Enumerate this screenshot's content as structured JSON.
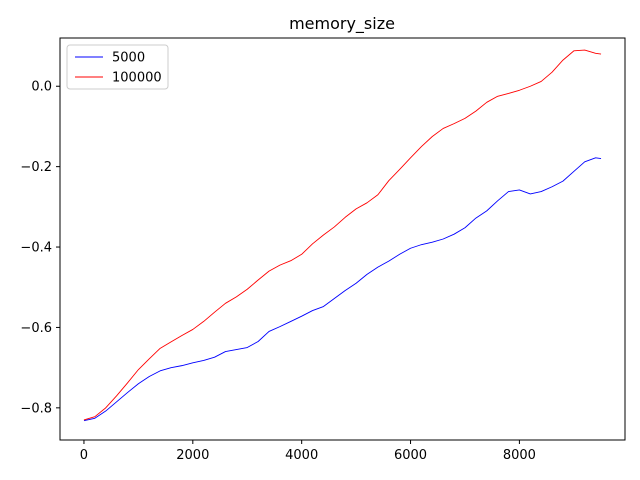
{
  "chart_data": {
    "type": "line",
    "title": "memory_size",
    "xlabel": "",
    "ylabel": "",
    "xlim": [
      -440,
      9940
    ],
    "ylim": [
      -0.88,
      0.12
    ],
    "xticks": [
      0,
      2000,
      4000,
      6000,
      8000
    ],
    "yticks": [
      -0.8,
      -0.6,
      -0.4,
      -0.2,
      0.0
    ],
    "xtick_labels": [
      "0",
      "2000",
      "4000",
      "6000",
      "8000"
    ],
    "ytick_labels": [
      "−0.8",
      "−0.6",
      "−0.4",
      "−0.2",
      "0.0"
    ],
    "grid": false,
    "legend_position": "top-left",
    "series": [
      {
        "name": "5000",
        "color": "#0000ff",
        "x": [
          0,
          200,
          400,
          600,
          800,
          1000,
          1200,
          1400,
          1600,
          1800,
          2000,
          2200,
          2400,
          2600,
          2800,
          3000,
          3200,
          3400,
          3600,
          3800,
          4000,
          4200,
          4400,
          4600,
          4800,
          5000,
          5200,
          5400,
          5600,
          5800,
          6000,
          6200,
          6400,
          6600,
          6800,
          7000,
          7200,
          7400,
          7600,
          7800,
          8000,
          8200,
          8400,
          8600,
          8800,
          9000,
          9200,
          9400,
          9500
        ],
        "y": [
          -0.832,
          -0.826,
          -0.808,
          -0.785,
          -0.762,
          -0.74,
          -0.722,
          -0.708,
          -0.7,
          -0.695,
          -0.688,
          -0.682,
          -0.674,
          -0.66,
          -0.655,
          -0.65,
          -0.635,
          -0.61,
          -0.598,
          -0.585,
          -0.572,
          -0.558,
          -0.548,
          -0.528,
          -0.508,
          -0.49,
          -0.468,
          -0.45,
          -0.435,
          -0.418,
          -0.403,
          -0.394,
          -0.388,
          -0.38,
          -0.368,
          -0.352,
          -0.328,
          -0.31,
          -0.285,
          -0.262,
          -0.258,
          -0.268,
          -0.262,
          -0.25,
          -0.236,
          -0.212,
          -0.188,
          -0.178,
          -0.18
        ]
      },
      {
        "name": "100000",
        "color": "#ff0000",
        "x": [
          0,
          200,
          400,
          600,
          800,
          1000,
          1200,
          1400,
          1600,
          1800,
          2000,
          2200,
          2400,
          2600,
          2800,
          3000,
          3200,
          3400,
          3600,
          3800,
          4000,
          4200,
          4400,
          4600,
          4800,
          5000,
          5200,
          5400,
          5600,
          5800,
          6000,
          6200,
          6400,
          6600,
          6800,
          7000,
          7200,
          7400,
          7600,
          7800,
          8000,
          8200,
          8400,
          8600,
          8800,
          9000,
          9200,
          9400,
          9500
        ],
        "y": [
          -0.83,
          -0.822,
          -0.8,
          -0.77,
          -0.738,
          -0.705,
          -0.678,
          -0.652,
          -0.636,
          -0.62,
          -0.605,
          -0.585,
          -0.562,
          -0.54,
          -0.524,
          -0.505,
          -0.482,
          -0.46,
          -0.445,
          -0.434,
          -0.418,
          -0.392,
          -0.37,
          -0.35,
          -0.326,
          -0.305,
          -0.29,
          -0.27,
          -0.235,
          -0.207,
          -0.178,
          -0.15,
          -0.125,
          -0.105,
          -0.093,
          -0.08,
          -0.062,
          -0.04,
          -0.025,
          -0.018,
          -0.01,
          0.0,
          0.012,
          0.035,
          0.065,
          0.088,
          0.09,
          0.082,
          0.08
        ]
      }
    ]
  }
}
